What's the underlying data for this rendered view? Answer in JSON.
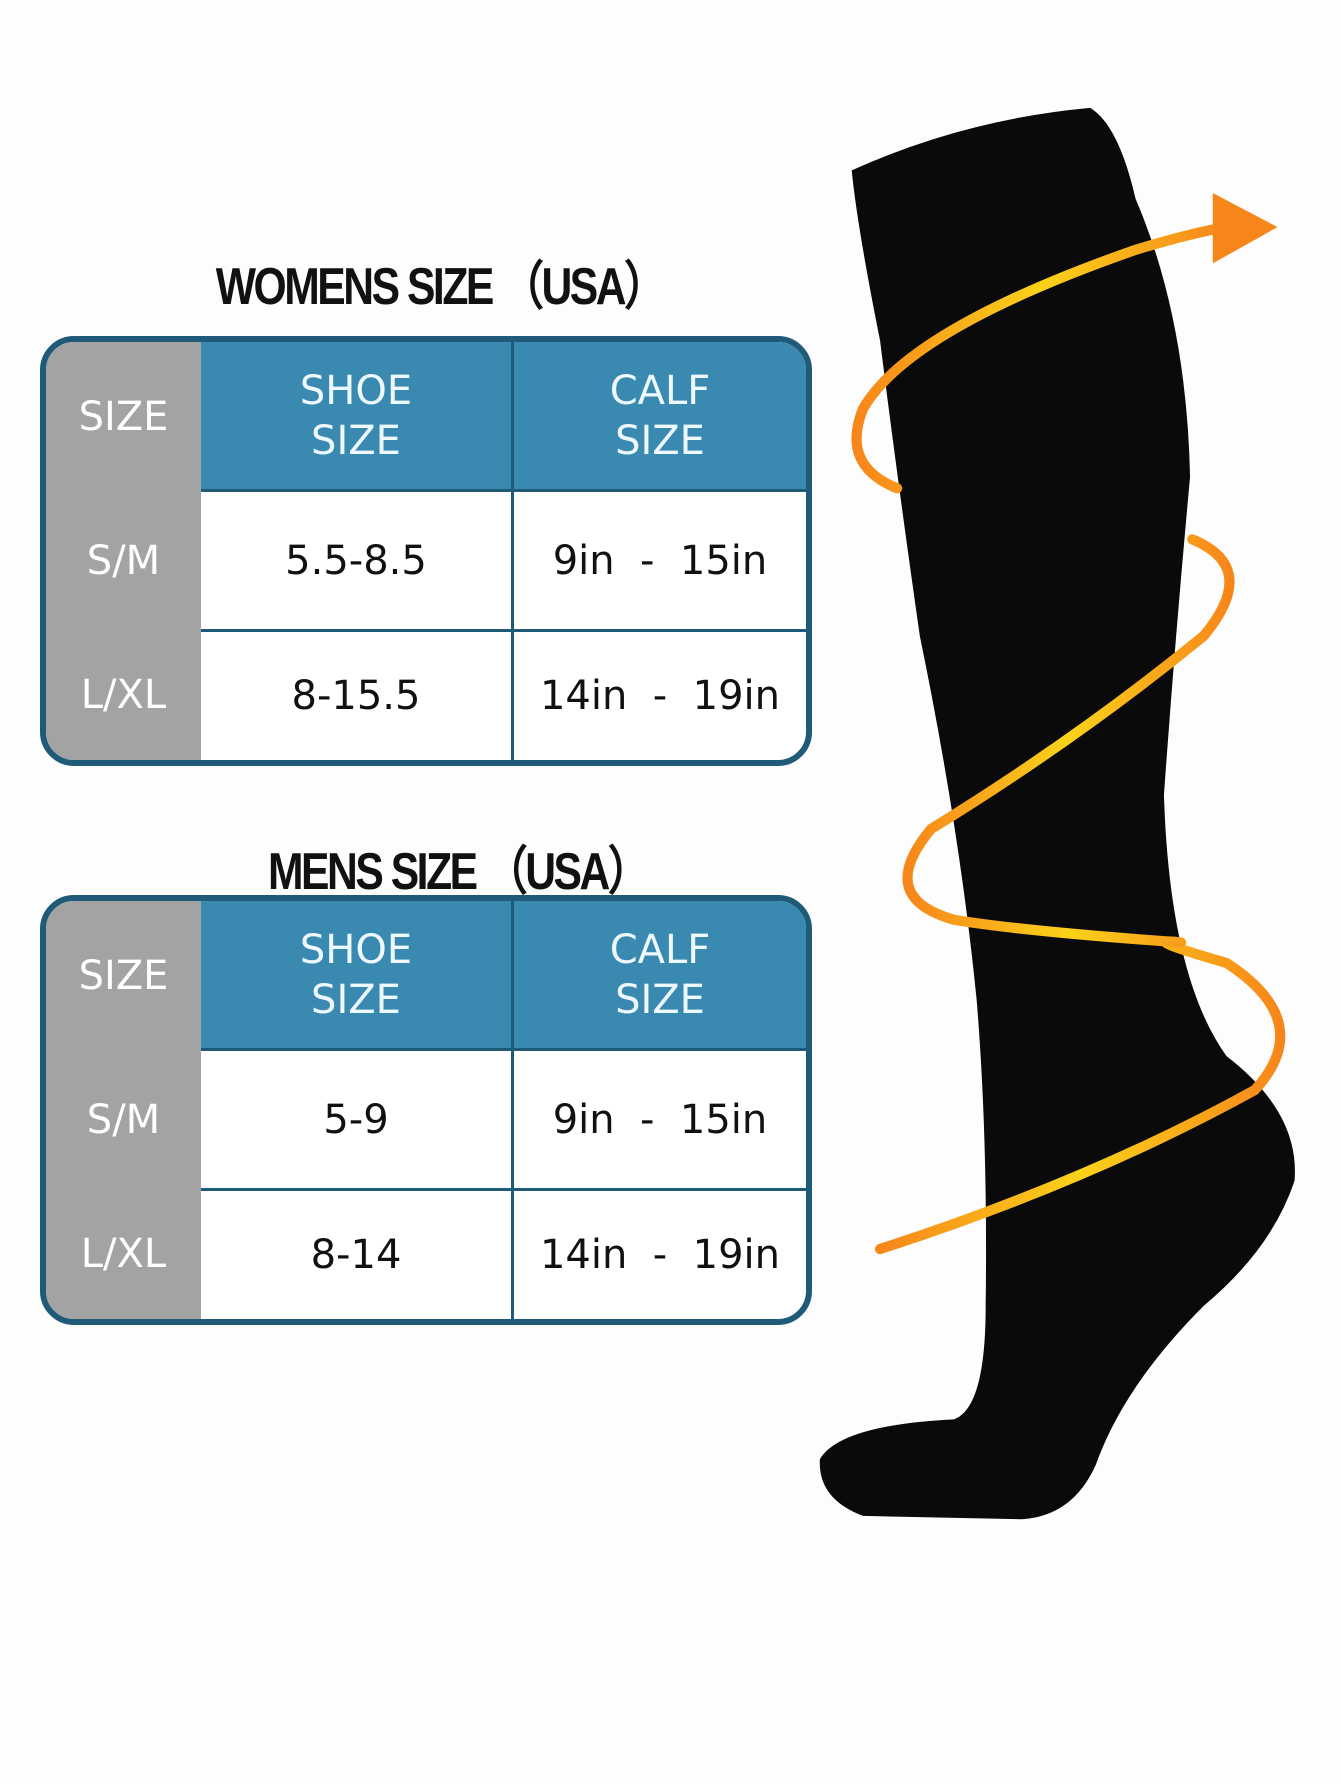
{
  "tables": [
    {
      "title": "WOMENS SIZE （USA）",
      "headers": [
        "SIZE",
        "SHOE\nSIZE",
        "CALF\nSIZE"
      ],
      "rows": [
        [
          "S/M",
          "5.5-8.5",
          "9in  -  15in"
        ],
        [
          "L/XL",
          "8-15.5",
          "14in  -  19in"
        ]
      ]
    },
    {
      "title": "MENS SIZE （USA）",
      "headers": [
        "SIZE",
        "SHOE\nSIZE",
        "CALF\nSIZE"
      ],
      "rows": [
        [
          "S/M",
          "5-9",
          "9in  -  15in"
        ],
        [
          "L/XL",
          "8-14",
          "14in  -  19in"
        ]
      ]
    }
  ],
  "colors": {
    "header": "#3a89b0",
    "border": "#1f5a78",
    "side": "#a3a3a3",
    "spiral": "#f6901e",
    "sock": "#0a0a0a"
  },
  "illustration": {
    "icon": "compression-sock-with-spiral-arrow"
  }
}
